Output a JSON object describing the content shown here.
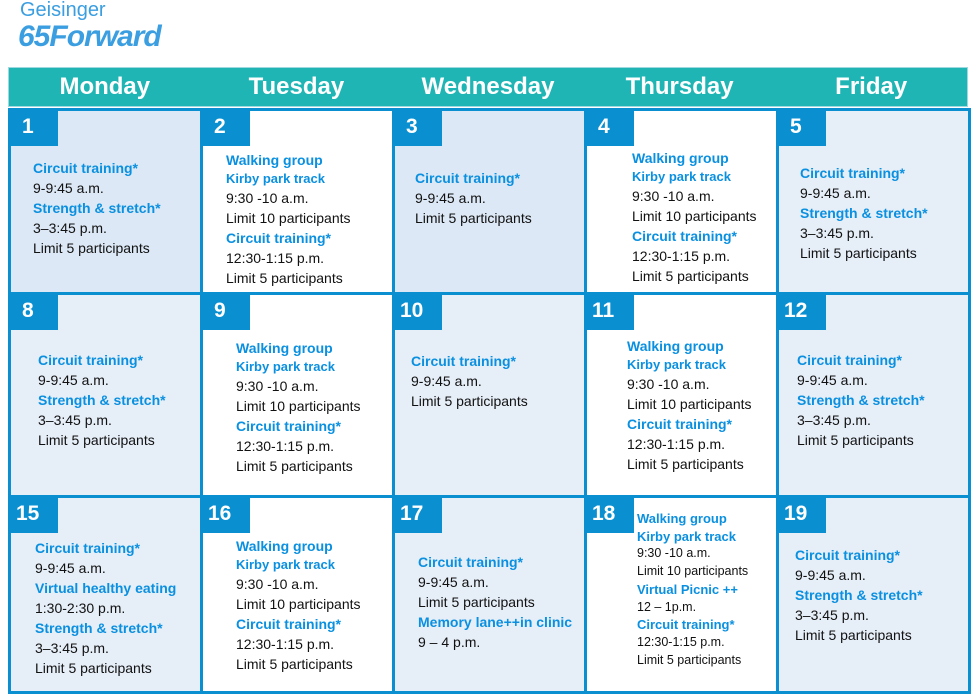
{
  "logo": {
    "brand": "Geisinger",
    "program": "65Forward"
  },
  "colors": {
    "header": "#1fb5b5",
    "border": "#0a8fd0",
    "title": "#0a90e0",
    "tint": "#e6eef8"
  },
  "days": [
    "Monday",
    "Tuesday",
    "Wednesday",
    "Thursday",
    "Friday"
  ],
  "cells": [
    {
      "day": "1",
      "tint": "tint2",
      "items": [
        {
          "t": "Circuit training*",
          "k": "title"
        },
        {
          "t": "9-9:45 a.m.",
          "k": "body"
        },
        {
          "t": "Strength & stretch*",
          "k": "title"
        },
        {
          "t": "3–3:45 p.m.",
          "k": "body"
        },
        {
          "t": "Limit 5 participants",
          "k": "body"
        }
      ]
    },
    {
      "day": "2",
      "tint": "",
      "items": [
        {
          "t": "Walking group",
          "k": "title"
        },
        {
          "t": "Kirby park track",
          "k": "sub"
        },
        {
          "t": "9:30 -10 a.m.",
          "k": "body"
        },
        {
          "t": "Limit 10 participants",
          "k": "body"
        },
        {
          "t": "Circuit training*",
          "k": "title"
        },
        {
          "t": "12:30-1:15 p.m.",
          "k": "body"
        },
        {
          "t": "Limit 5 participants",
          "k": "body"
        }
      ]
    },
    {
      "day": "3",
      "tint": "tint2",
      "items": [
        {
          "t": "Circuit training*",
          "k": "title"
        },
        {
          "t": "9-9:45 a.m.",
          "k": "body"
        },
        {
          "t": "Limit 5 participants",
          "k": "body"
        }
      ]
    },
    {
      "day": "4",
      "tint": "",
      "items": [
        {
          "t": "Walking group",
          "k": "title"
        },
        {
          "t": "Kirby park track",
          "k": "sub"
        },
        {
          "t": "9:30 -10 a.m.",
          "k": "body"
        },
        {
          "t": "Limit 10 participants",
          "k": "body"
        },
        {
          "t": "Circuit training*",
          "k": "title"
        },
        {
          "t": "12:30-1:15 p.m.",
          "k": "body"
        },
        {
          "t": "Limit 5 participants",
          "k": "body"
        }
      ]
    },
    {
      "day": "5",
      "tint": "tint",
      "items": [
        {
          "t": "Circuit training*",
          "k": "title"
        },
        {
          "t": "9-9:45 a.m.",
          "k": "body"
        },
        {
          "t": "Strength & stretch*",
          "k": "title"
        },
        {
          "t": "3–3:45 p.m.",
          "k": "body"
        },
        {
          "t": "Limit 5 participants",
          "k": "body"
        }
      ]
    },
    {
      "day": "8",
      "tint": "tint",
      "items": [
        {
          "t": "Circuit training*",
          "k": "title"
        },
        {
          "t": "9-9:45 a.m.",
          "k": "body"
        },
        {
          "t": "Strength & stretch*",
          "k": "title"
        },
        {
          "t": "3–3:45 p.m.",
          "k": "body"
        },
        {
          "t": "Limit 5 participants",
          "k": "body"
        }
      ]
    },
    {
      "day": "9",
      "tint": "",
      "items": [
        {
          "t": "Walking group",
          "k": "title"
        },
        {
          "t": "Kirby park track",
          "k": "sub"
        },
        {
          "t": "9:30 -10 a.m.",
          "k": "body"
        },
        {
          "t": "Limit 10 participants",
          "k": "body"
        },
        {
          "t": "Circuit training*",
          "k": "title"
        },
        {
          "t": "12:30-1:15 p.m.",
          "k": "body"
        },
        {
          "t": "Limit 5 participants",
          "k": "body"
        }
      ]
    },
    {
      "day": "10",
      "tint": "tint",
      "items": [
        {
          "t": "Circuit training*",
          "k": "title"
        },
        {
          "t": "9-9:45 a.m.",
          "k": "body"
        },
        {
          "t": "Limit 5 participants",
          "k": "body"
        }
      ]
    },
    {
      "day": "11",
      "tint": "",
      "items": [
        {
          "t": "Walking group",
          "k": "title"
        },
        {
          "t": "Kirby park track",
          "k": "sub"
        },
        {
          "t": "9:30 -10 a.m.",
          "k": "body"
        },
        {
          "t": "Limit 10 participants",
          "k": "body"
        },
        {
          "t": "Circuit training*",
          "k": "title"
        },
        {
          "t": "12:30-1:15 p.m.",
          "k": "body"
        },
        {
          "t": "Limit 5 participants",
          "k": "body"
        }
      ]
    },
    {
      "day": "12",
      "tint": "tint",
      "items": [
        {
          "t": "Circuit training*",
          "k": "title"
        },
        {
          "t": "9-9:45 a.m.",
          "k": "body"
        },
        {
          "t": "Strength & stretch*",
          "k": "title"
        },
        {
          "t": "3–3:45 p.m.",
          "k": "body"
        },
        {
          "t": "Limit 5 participants",
          "k": "body"
        }
      ]
    },
    {
      "day": "15",
      "tint": "tint",
      "items": [
        {
          "t": "Circuit training*",
          "k": "title"
        },
        {
          "t": "9-9:45 a.m.",
          "k": "body"
        },
        {
          "t": "Virtual healthy eating",
          "k": "title"
        },
        {
          "t": "1:30-2:30 p.m.",
          "k": "body"
        },
        {
          "t": "Strength & stretch*",
          "k": "title"
        },
        {
          "t": "3–3:45 p.m.",
          "k": "body"
        },
        {
          "t": "Limit 5 participants",
          "k": "body"
        }
      ]
    },
    {
      "day": "16",
      "tint": "",
      "items": [
        {
          "t": "Walking group",
          "k": "title"
        },
        {
          "t": "Kirby park track",
          "k": "sub"
        },
        {
          "t": "9:30 -10 a.m.",
          "k": "body"
        },
        {
          "t": "Limit 10 participants",
          "k": "body"
        },
        {
          "t": "Circuit training*",
          "k": "title"
        },
        {
          "t": "12:30-1:15 p.m.",
          "k": "body"
        },
        {
          "t": "Limit 5 participants",
          "k": "body"
        }
      ]
    },
    {
      "day": "17",
      "tint": "tint",
      "items": [
        {
          "t": "Circuit training*",
          "k": "title"
        },
        {
          "t": "9-9:45 a.m.",
          "k": "body"
        },
        {
          "t": "Limit 5 participants",
          "k": "body"
        },
        {
          "t": "Memory lane++in clinic",
          "k": "title"
        },
        {
          "t": "9 – 4 p.m.",
          "k": "body"
        }
      ]
    },
    {
      "day": "18",
      "tint": "",
      "items": [
        {
          "t": "Walking group",
          "k": "title"
        },
        {
          "t": "Kirby park track",
          "k": "sub"
        },
        {
          "t": "9:30 -10 a.m.",
          "k": "body"
        },
        {
          "t": "Limit 10 participants",
          "k": "body"
        },
        {
          "t": "Virtual Picnic ++",
          "k": "title"
        },
        {
          "t": "12 – 1p.m.",
          "k": "body"
        },
        {
          "t": "Circuit training*",
          "k": "title"
        },
        {
          "t": "12:30-1:15 p.m.",
          "k": "body"
        },
        {
          "t": "Limit 5 participants",
          "k": "body"
        }
      ]
    },
    {
      "day": "19",
      "tint": "tint",
      "items": [
        {
          "t": "Circuit training*",
          "k": "title"
        },
        {
          "t": "9-9:45 a.m.",
          "k": "body"
        },
        {
          "t": "Strength & stretch*",
          "k": "title"
        },
        {
          "t": "3–3:45 p.m.",
          "k": "body"
        },
        {
          "t": "Limit 5 participants",
          "k": "body"
        }
      ]
    }
  ]
}
